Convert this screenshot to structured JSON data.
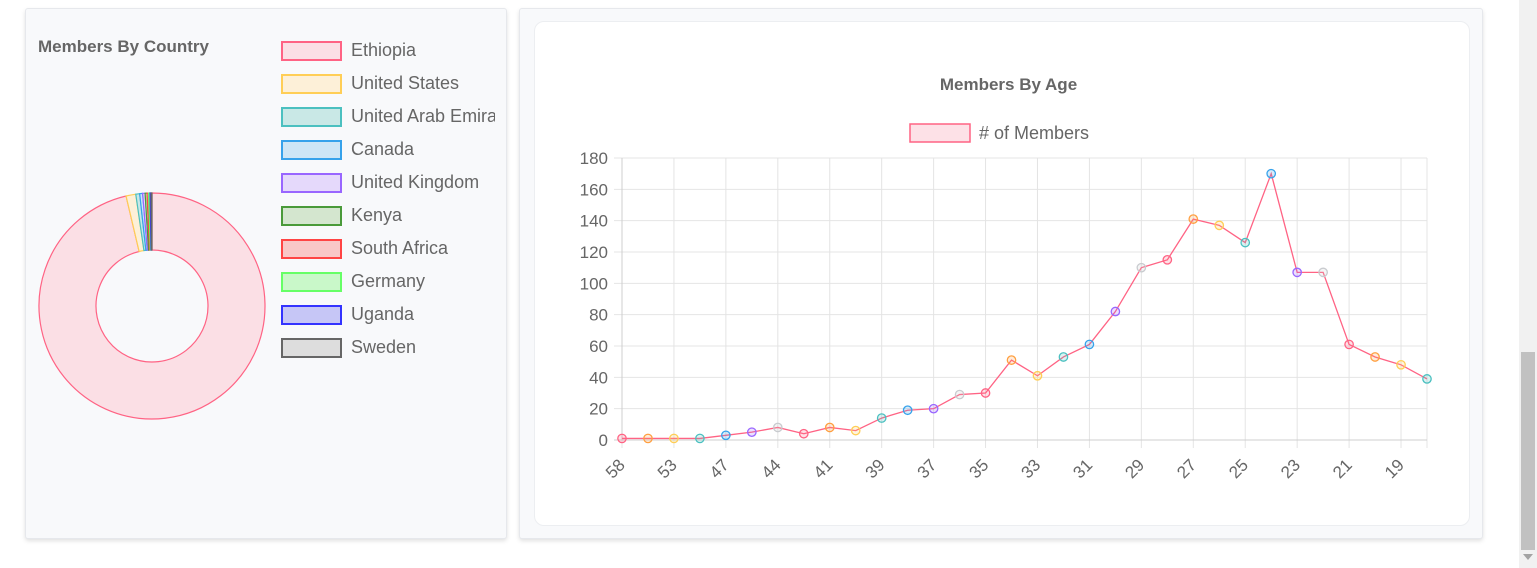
{
  "chart_data": [
    {
      "type": "pie",
      "title": "Members By Country",
      "legend_position": "right",
      "categories": [
        "Ethiopia",
        "United States",
        "United Arab Emira",
        "Canada",
        "United Kingdom",
        "Kenya",
        "South Africa",
        "Germany",
        "Uganda",
        "Sweden"
      ],
      "values": [
        1385,
        20,
        8,
        6,
        5,
        4,
        3,
        3,
        2,
        2
      ],
      "colors": [
        "#ff6384",
        "#ffce56",
        "#4bc0c0",
        "#36a2eb",
        "#9966ff",
        "#4a9a3a",
        "#ff4444",
        "#66ff66",
        "#3333ff",
        "#666666"
      ],
      "fill_colors": [
        "#fbdfe5",
        "#fdf0d8",
        "#c9e8e6",
        "#cde6f6",
        "#e5d9fb",
        "#d4e6cf",
        "#f9c7c7",
        "#c9f8c9",
        "#c6c6f6",
        "#dddddd"
      ],
      "chart_style": "doughnut"
    },
    {
      "type": "line",
      "title": "Members By Age",
      "legend_position": "top",
      "series": [
        {
          "name": "# of Members",
          "values": [
            1,
            1,
            1,
            1,
            3,
            5,
            8,
            4,
            8,
            6,
            14,
            19,
            20,
            29,
            30,
            51,
            41,
            53,
            61,
            82,
            110,
            115,
            141,
            137,
            126,
            170,
            107,
            107,
            61,
            53,
            48,
            39
          ],
          "line_color": "#ff6384",
          "fill_color": "#fde1e7"
        }
      ],
      "x": [
        "58",
        "",
        "53",
        "",
        "47",
        "",
        "44",
        "",
        "41",
        "",
        "39",
        "",
        "37",
        "",
        "35",
        "",
        "33",
        "",
        "31",
        "",
        "29",
        "",
        "27",
        "",
        "25",
        "",
        "23",
        "",
        "21",
        "",
        "19",
        ""
      ],
      "ylim": [
        0,
        180
      ],
      "yticks": [
        0,
        20,
        40,
        60,
        80,
        100,
        120,
        140,
        160,
        180
      ],
      "grid": true,
      "point_colors": [
        "#ff6384",
        "#ff9f40",
        "#ffce56",
        "#4bc0c0",
        "#36a2eb",
        "#9966ff",
        "#c9cbcf"
      ]
    }
  ]
}
